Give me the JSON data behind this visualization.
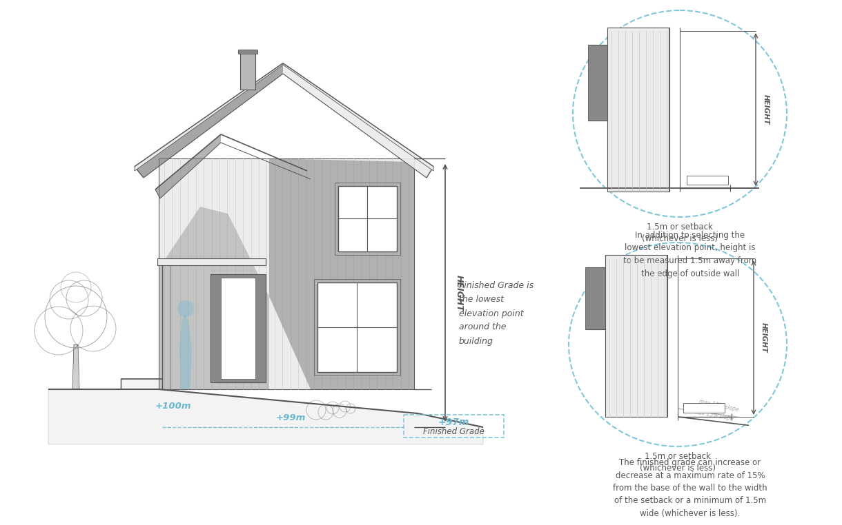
{
  "bg_color": "#ffffff",
  "lc": "#ececec",
  "mc": "#b8b8b8",
  "dc": "#888888",
  "sc": "#777777",
  "oc": "#555555",
  "blue": "#7fc8dc",
  "blue_text": "#6ab8d0",
  "mid_text": "Finished Grade is\nthe lowest\nelevation point\naround the\nbuilding",
  "height_label": "HEIGHT",
  "t100": "+100m",
  "t99": "+99m",
  "t97": "+97m",
  "tfg": "Finished Grade",
  "t_e1": "1.5m or setback\n(whichever is less)",
  "t_e2": "1.5m or setback\n(whichever is less)",
  "t_mid": "In addition to selecting the\nlowest elevation point, height is\nto be measured 1.5m away from\nthe edge of outside wall",
  "t_bot": "The finished grade can increase or\ndecrease at a maximum rate of 15%\nfrom the base of the wall to the width\nof the setback or a minimum of 1.5m\nwide (whichever is less).",
  "t_slope1": "max 15% slope",
  "t_slope2": "max 15% slope"
}
